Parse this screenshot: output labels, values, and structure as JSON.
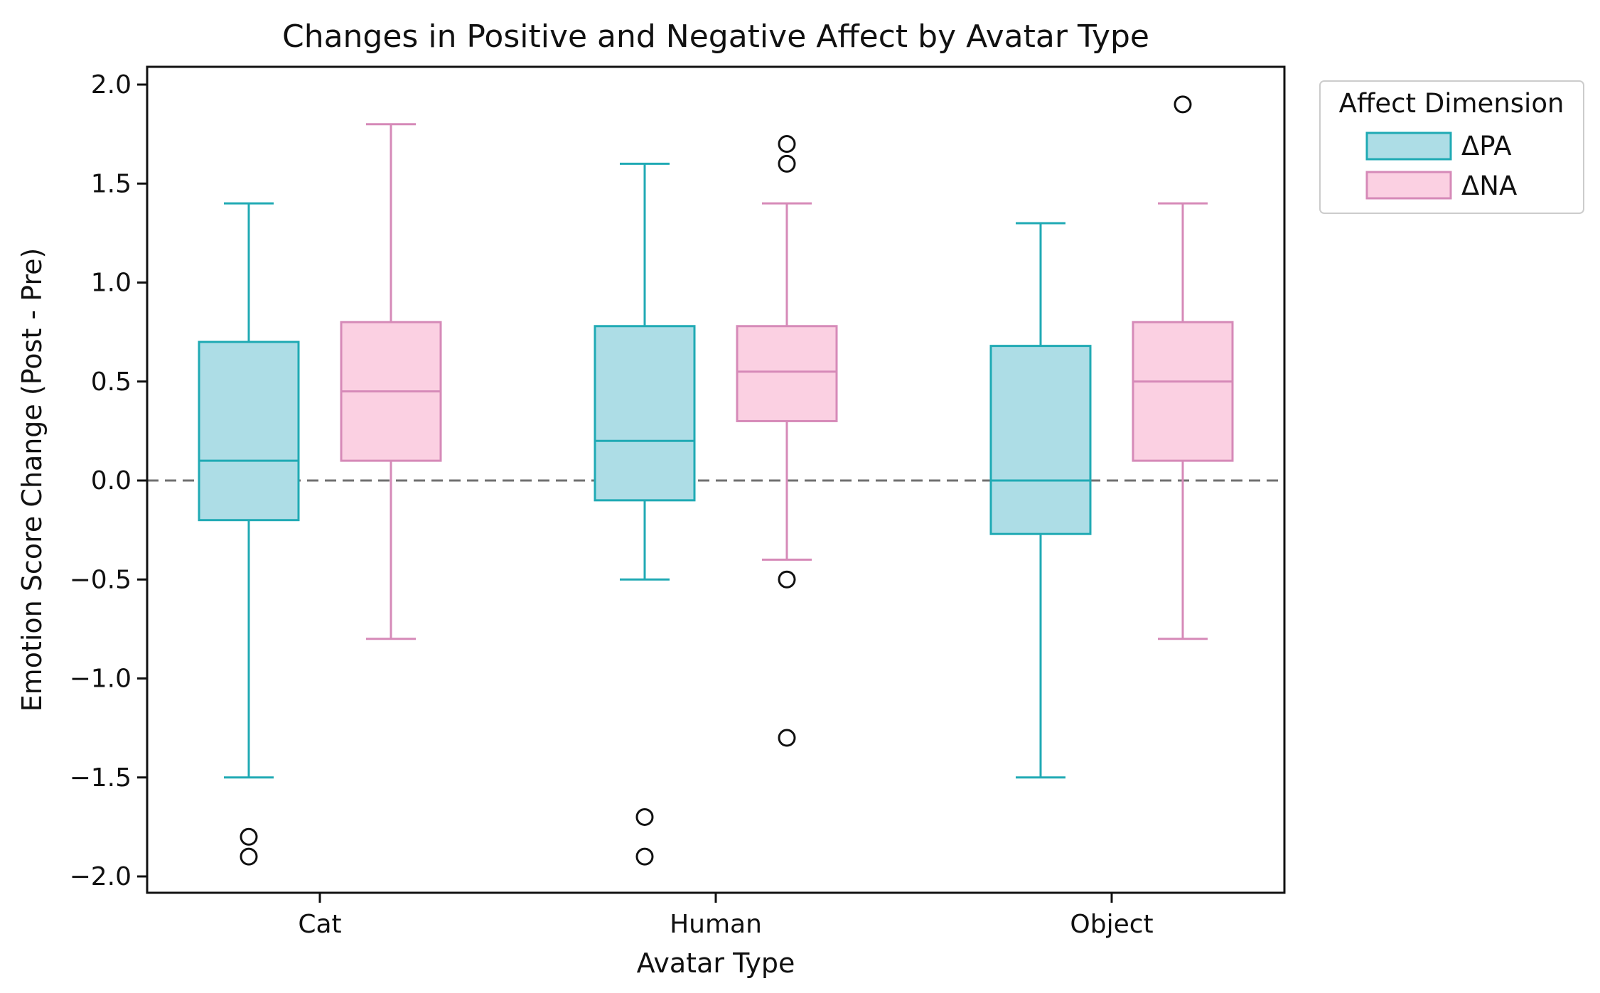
{
  "chart_data": {
    "type": "box",
    "title": "Changes in Positive and Negative Affect by Avatar Type",
    "xlabel": "Avatar Type",
    "ylabel": "Emotion Score Change (Post - Pre)",
    "ylim": [
      -2.08,
      2.08
    ],
    "yticks": [
      2.0,
      1.5,
      1.0,
      0.5,
      0.0,
      -0.5,
      -1.0,
      -1.5,
      -2.0
    ],
    "ytick_labels": [
      "2.0",
      "1.5",
      "1.0",
      "0.5",
      "0.0",
      "−0.5",
      "−1.0",
      "−1.5",
      "−2.0"
    ],
    "reference_line": 0.0,
    "categories": [
      "Cat",
      "Human",
      "Object"
    ],
    "legend": {
      "title": "Affect Dimension",
      "placement": "outside-top-right"
    },
    "series": [
      {
        "name": "ΔPA",
        "fill": "#ADDDE6",
        "stroke": "#20AAB4",
        "boxes": [
          {
            "whisker_low": -1.5,
            "q1": -0.2,
            "median": 0.1,
            "q3": 0.7,
            "whisker_high": 1.4,
            "outliers": [
              -1.8,
              -1.9
            ]
          },
          {
            "whisker_low": -0.5,
            "q1": -0.1,
            "median": 0.2,
            "q3": 0.78,
            "whisker_high": 1.6,
            "outliers": [
              -1.7,
              -1.9
            ]
          },
          {
            "whisker_low": -1.5,
            "q1": -0.27,
            "median": 0.0,
            "q3": 0.68,
            "whisker_high": 1.3,
            "outliers": []
          }
        ]
      },
      {
        "name": "ΔNA",
        "fill": "#FBD0E2",
        "stroke": "#D68AB8",
        "boxes": [
          {
            "whisker_low": -0.8,
            "q1": 0.1,
            "median": 0.45,
            "q3": 0.8,
            "whisker_high": 1.8,
            "outliers": []
          },
          {
            "whisker_low": -0.4,
            "q1": 0.3,
            "median": 0.55,
            "q3": 0.78,
            "whisker_high": 1.4,
            "outliers": [
              1.7,
              1.6,
              -0.5,
              -1.3
            ]
          },
          {
            "whisker_low": -0.8,
            "q1": 0.1,
            "median": 0.5,
            "q3": 0.8,
            "whisker_high": 1.4,
            "outliers": [
              1.9
            ]
          }
        ]
      }
    ]
  }
}
